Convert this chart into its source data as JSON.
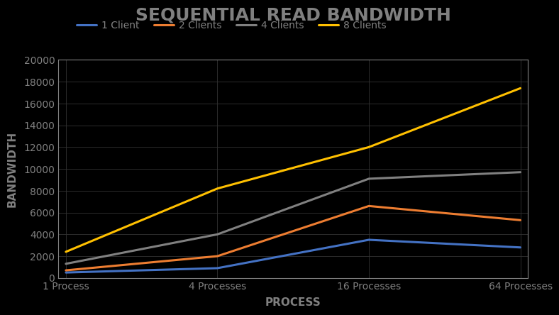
{
  "title": "SEQUENTIAL READ BANDWIDTH",
  "xlabel": "PROCESS",
  "ylabel": "BANDWIDTH",
  "x_labels": [
    "1 Process",
    "4 Processes",
    "16 Processes",
    "64 Processes"
  ],
  "x_positions": [
    0,
    1,
    2,
    3
  ],
  "series": [
    {
      "label": "1 Client",
      "color": "#4472C4",
      "values": [
        500,
        900,
        3500,
        2800
      ]
    },
    {
      "label": "2 Clients",
      "color": "#ED7D31",
      "values": [
        700,
        2000,
        6600,
        5300
      ]
    },
    {
      "label": "4 Clients",
      "color": "#808080",
      "values": [
        1300,
        4000,
        9100,
        9700
      ]
    },
    {
      "label": "8 Clients",
      "color": "#FFC000",
      "values": [
        2400,
        8200,
        12000,
        17400
      ]
    }
  ],
  "ylim": [
    0,
    20000
  ],
  "yticks": [
    0,
    2000,
    4000,
    6000,
    8000,
    10000,
    12000,
    14000,
    16000,
    18000,
    20000
  ],
  "background_color": "#000000",
  "plot_bg_color": "#000000",
  "text_color": "#808080",
  "grid_color": "#333333",
  "spine_color": "#808080",
  "title_fontsize": 18,
  "label_fontsize": 11,
  "tick_fontsize": 10,
  "legend_fontsize": 10,
  "line_width": 2.2
}
